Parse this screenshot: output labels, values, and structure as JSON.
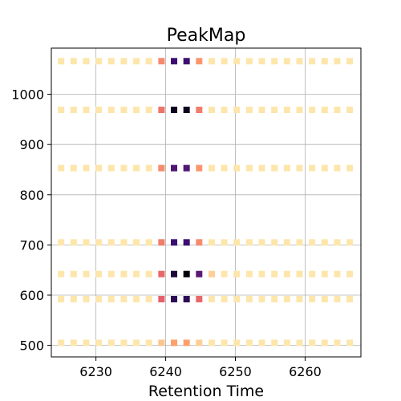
{
  "chart_data": {
    "type": "heatmap",
    "title": "PeakMap",
    "xlabel": "Retention Time",
    "ylabel": "",
    "xlim": [
      6223.6,
      6268.0
    ],
    "ylim": [
      477,
      1092
    ],
    "xticks": [
      6230,
      6240,
      6250,
      6260
    ],
    "yticks": [
      500,
      600,
      700,
      800,
      900,
      1000
    ],
    "grid": true,
    "colormap": "magma",
    "colormap_stops": [
      "#000004",
      "#3b0f70",
      "#8c2981",
      "#de4968",
      "#fe9f6d",
      "#fcfdbf"
    ],
    "x": [
      6225,
      6226.8,
      6228.6,
      6230.4,
      6232.2,
      6234,
      6235.8,
      6237.6,
      6239.4,
      6241.2,
      6243,
      6244.8,
      6246.6,
      6248.4,
      6250.2,
      6252,
      6253.8,
      6255.6,
      6257.4,
      6259.2,
      6261,
      6262.8,
      6264.6,
      6266.4
    ],
    "rows": [
      {
        "y": 1066,
        "values": [
          0.05,
          0.05,
          0.05,
          0.05,
          0.05,
          0.05,
          0.05,
          0.05,
          0.25,
          0.8,
          0.8,
          0.22,
          0.05,
          0.05,
          0.05,
          0.05,
          0.05,
          0.05,
          0.05,
          0.05,
          0.05,
          0.05,
          0.05,
          0.05
        ]
      },
      {
        "y": 969,
        "values": [
          0.05,
          0.05,
          0.05,
          0.05,
          0.05,
          0.05,
          0.05,
          0.05,
          0.3,
          0.95,
          0.95,
          0.28,
          0.05,
          0.05,
          0.05,
          0.05,
          0.05,
          0.05,
          0.05,
          0.05,
          0.05,
          0.05,
          0.05,
          0.05
        ]
      },
      {
        "y": 853,
        "values": [
          0.05,
          0.05,
          0.05,
          0.05,
          0.05,
          0.05,
          0.05,
          0.05,
          0.25,
          0.75,
          0.75,
          0.22,
          0.05,
          0.05,
          0.05,
          0.05,
          0.05,
          0.05,
          0.05,
          0.05,
          0.05,
          0.05,
          0.05,
          0.05
        ]
      },
      {
        "y": 705,
        "values": [
          0.05,
          0.05,
          0.05,
          0.05,
          0.05,
          0.05,
          0.05,
          0.05,
          0.28,
          0.8,
          0.8,
          0.25,
          0.05,
          0.05,
          0.05,
          0.05,
          0.05,
          0.05,
          0.05,
          0.05,
          0.05,
          0.05,
          0.05,
          0.05
        ]
      },
      {
        "y": 642,
        "values": [
          0.05,
          0.05,
          0.05,
          0.05,
          0.05,
          0.05,
          0.05,
          0.05,
          0.33,
          0.9,
          1.0,
          0.72,
          0.1,
          0.05,
          0.05,
          0.05,
          0.05,
          0.05,
          0.05,
          0.05,
          0.05,
          0.05,
          0.05,
          0.05
        ]
      },
      {
        "y": 592,
        "values": [
          0.05,
          0.05,
          0.05,
          0.05,
          0.05,
          0.05,
          0.05,
          0.05,
          0.35,
          0.85,
          0.85,
          0.33,
          0.05,
          0.05,
          0.05,
          0.05,
          0.05,
          0.05,
          0.05,
          0.05,
          0.05,
          0.05,
          0.05,
          0.05
        ]
      },
      {
        "y": 505,
        "values": [
          0.05,
          0.05,
          0.05,
          0.05,
          0.05,
          0.05,
          0.05,
          0.05,
          0.12,
          0.2,
          0.2,
          0.1,
          0.05,
          0.05,
          0.05,
          0.05,
          0.05,
          0.05,
          0.05,
          0.05,
          0.05,
          0.05,
          0.05,
          0.05
        ]
      }
    ]
  }
}
